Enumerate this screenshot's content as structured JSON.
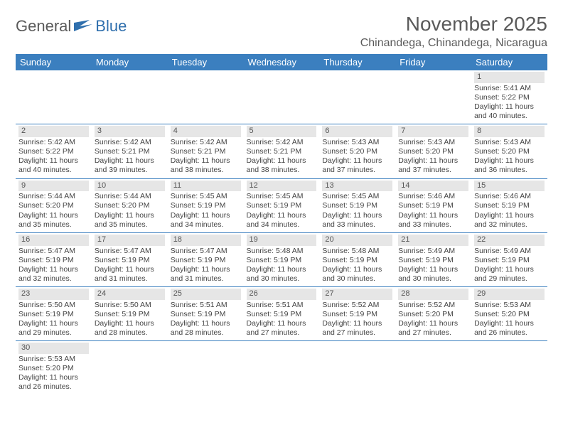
{
  "logo": {
    "text1": "General",
    "text2": "Blue"
  },
  "title": "November 2025",
  "location": "Chinandega, Chinandega, Nicaragua",
  "colors": {
    "header_bg": "#3b7fbf",
    "header_fg": "#ffffff",
    "daynum_bg": "#e6e6e6",
    "rule": "#3b7fbf",
    "text": "#444444",
    "title": "#5a5a5a"
  },
  "weekdays": [
    "Sunday",
    "Monday",
    "Tuesday",
    "Wednesday",
    "Thursday",
    "Friday",
    "Saturday"
  ],
  "weeks": [
    [
      null,
      null,
      null,
      null,
      null,
      null,
      {
        "n": "1",
        "sunrise": "5:41 AM",
        "sunset": "5:22 PM",
        "daylight": "11 hours and 40 minutes."
      }
    ],
    [
      {
        "n": "2",
        "sunrise": "5:42 AM",
        "sunset": "5:22 PM",
        "daylight": "11 hours and 40 minutes."
      },
      {
        "n": "3",
        "sunrise": "5:42 AM",
        "sunset": "5:21 PM",
        "daylight": "11 hours and 39 minutes."
      },
      {
        "n": "4",
        "sunrise": "5:42 AM",
        "sunset": "5:21 PM",
        "daylight": "11 hours and 38 minutes."
      },
      {
        "n": "5",
        "sunrise": "5:42 AM",
        "sunset": "5:21 PM",
        "daylight": "11 hours and 38 minutes."
      },
      {
        "n": "6",
        "sunrise": "5:43 AM",
        "sunset": "5:20 PM",
        "daylight": "11 hours and 37 minutes."
      },
      {
        "n": "7",
        "sunrise": "5:43 AM",
        "sunset": "5:20 PM",
        "daylight": "11 hours and 37 minutes."
      },
      {
        "n": "8",
        "sunrise": "5:43 AM",
        "sunset": "5:20 PM",
        "daylight": "11 hours and 36 minutes."
      }
    ],
    [
      {
        "n": "9",
        "sunrise": "5:44 AM",
        "sunset": "5:20 PM",
        "daylight": "11 hours and 35 minutes."
      },
      {
        "n": "10",
        "sunrise": "5:44 AM",
        "sunset": "5:20 PM",
        "daylight": "11 hours and 35 minutes."
      },
      {
        "n": "11",
        "sunrise": "5:45 AM",
        "sunset": "5:19 PM",
        "daylight": "11 hours and 34 minutes."
      },
      {
        "n": "12",
        "sunrise": "5:45 AM",
        "sunset": "5:19 PM",
        "daylight": "11 hours and 34 minutes."
      },
      {
        "n": "13",
        "sunrise": "5:45 AM",
        "sunset": "5:19 PM",
        "daylight": "11 hours and 33 minutes."
      },
      {
        "n": "14",
        "sunrise": "5:46 AM",
        "sunset": "5:19 PM",
        "daylight": "11 hours and 33 minutes."
      },
      {
        "n": "15",
        "sunrise": "5:46 AM",
        "sunset": "5:19 PM",
        "daylight": "11 hours and 32 minutes."
      }
    ],
    [
      {
        "n": "16",
        "sunrise": "5:47 AM",
        "sunset": "5:19 PM",
        "daylight": "11 hours and 32 minutes."
      },
      {
        "n": "17",
        "sunrise": "5:47 AM",
        "sunset": "5:19 PM",
        "daylight": "11 hours and 31 minutes."
      },
      {
        "n": "18",
        "sunrise": "5:47 AM",
        "sunset": "5:19 PM",
        "daylight": "11 hours and 31 minutes."
      },
      {
        "n": "19",
        "sunrise": "5:48 AM",
        "sunset": "5:19 PM",
        "daylight": "11 hours and 30 minutes."
      },
      {
        "n": "20",
        "sunrise": "5:48 AM",
        "sunset": "5:19 PM",
        "daylight": "11 hours and 30 minutes."
      },
      {
        "n": "21",
        "sunrise": "5:49 AM",
        "sunset": "5:19 PM",
        "daylight": "11 hours and 30 minutes."
      },
      {
        "n": "22",
        "sunrise": "5:49 AM",
        "sunset": "5:19 PM",
        "daylight": "11 hours and 29 minutes."
      }
    ],
    [
      {
        "n": "23",
        "sunrise": "5:50 AM",
        "sunset": "5:19 PM",
        "daylight": "11 hours and 29 minutes."
      },
      {
        "n": "24",
        "sunrise": "5:50 AM",
        "sunset": "5:19 PM",
        "daylight": "11 hours and 28 minutes."
      },
      {
        "n": "25",
        "sunrise": "5:51 AM",
        "sunset": "5:19 PM",
        "daylight": "11 hours and 28 minutes."
      },
      {
        "n": "26",
        "sunrise": "5:51 AM",
        "sunset": "5:19 PM",
        "daylight": "11 hours and 27 minutes."
      },
      {
        "n": "27",
        "sunrise": "5:52 AM",
        "sunset": "5:19 PM",
        "daylight": "11 hours and 27 minutes."
      },
      {
        "n": "28",
        "sunrise": "5:52 AM",
        "sunset": "5:20 PM",
        "daylight": "11 hours and 27 minutes."
      },
      {
        "n": "29",
        "sunrise": "5:53 AM",
        "sunset": "5:20 PM",
        "daylight": "11 hours and 26 minutes."
      }
    ],
    [
      {
        "n": "30",
        "sunrise": "5:53 AM",
        "sunset": "5:20 PM",
        "daylight": "11 hours and 26 minutes."
      },
      null,
      null,
      null,
      null,
      null,
      null
    ]
  ],
  "labels": {
    "sunrise": "Sunrise: ",
    "sunset": "Sunset: ",
    "daylight": "Daylight: "
  }
}
